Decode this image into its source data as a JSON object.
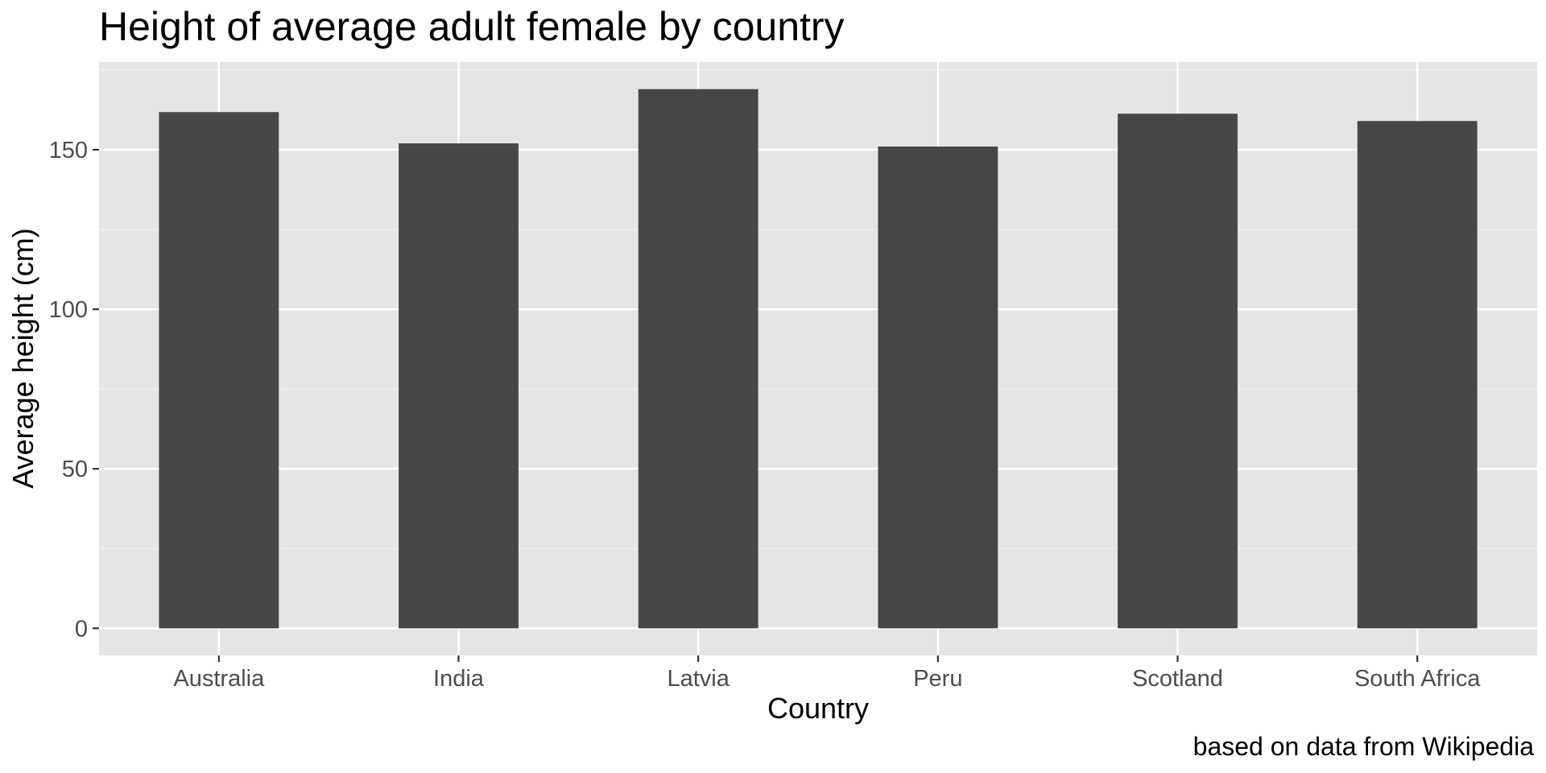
{
  "chart_data": {
    "type": "bar",
    "title": "Height of average adult female by country",
    "xlabel": "Country",
    "ylabel": "Average height (cm)",
    "caption": "based on data from Wikipedia",
    "categories": [
      "Australia",
      "India",
      "Latvia",
      "Peru",
      "Scotland",
      "South Africa"
    ],
    "values": [
      161.8,
      152.0,
      169.0,
      151.0,
      161.3,
      159.0
    ],
    "ylim": [
      -8.5,
      177.5
    ],
    "yticks": [
      0,
      50,
      100,
      150
    ],
    "ytick_labels": [
      "0",
      "50",
      "100",
      "150"
    ],
    "grid": true,
    "legend": "none",
    "colors": {
      "bar": "#474747",
      "panel_background": "#e5e5e5",
      "grid_major": "#ffffff",
      "grid_minor": "#f2f2f2",
      "tick": "#333333"
    }
  }
}
